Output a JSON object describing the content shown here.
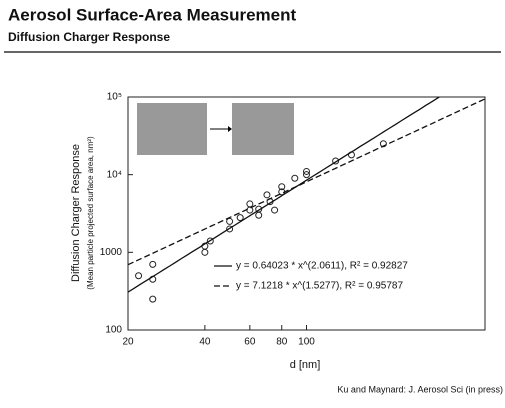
{
  "title": "Aerosol Surface-Area Measurement",
  "subtitle": "Diffusion Charger Response",
  "citation": "Ku and Maynard: J. Aerosol Sci (in press)",
  "chart_data": {
    "type": "scatter",
    "y_label": "Diffusion Charger Response",
    "y_sublabel": "(Mean particle projected surface area, nm²)",
    "x_label": "d [nm]",
    "x_log": true,
    "y_log": true,
    "xlim": [
      20,
      500
    ],
    "ylim": [
      100,
      100000
    ],
    "xticks": [
      20,
      40,
      60,
      80,
      100
    ],
    "yticks": [
      100,
      1000,
      {
        "value": 10000,
        "label": "10⁴"
      },
      {
        "value": 100000,
        "label": "10⁵"
      }
    ],
    "color": "#222",
    "x": [
      22,
      25,
      25,
      25,
      40,
      40,
      42,
      50,
      50,
      55,
      60,
      60,
      65,
      65,
      70,
      72,
      75,
      80,
      80,
      90,
      100,
      100,
      130,
      150,
      200
    ],
    "values": [
      500,
      450,
      700,
      250,
      1200,
      1000,
      1400,
      2000,
      2500,
      2800,
      3500,
      4200,
      3000,
      3600,
      5500,
      4500,
      3500,
      7000,
      6000,
      9000,
      10000,
      11000,
      15000,
      18000,
      25000
    ],
    "fits": [
      {
        "label": "y = 0.64023 * x^(2.0611),  R² = 0.92827",
        "a": 0.64023,
        "b": 2.0611,
        "dash": false
      },
      {
        "label": "y = 7.1218 * x^(1.5277),  R² = 0.95787",
        "a": 7.1218,
        "b": 1.5277,
        "dash": true
      }
    ]
  }
}
